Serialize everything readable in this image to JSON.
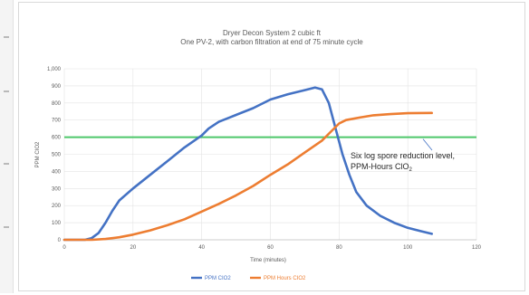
{
  "window": {
    "left_strip_icon": "ruler-icon"
  },
  "chart_data": {
    "type": "line",
    "title_line1": "Dryer Decon System 2 cubic ft",
    "title_line2": "One PV-2, with carbon filtration at end of 75 minute cycle",
    "xlabel": "Time (minutes)",
    "ylabel": "PPM CIO2",
    "xlim": [
      0,
      120
    ],
    "ylim": [
      0,
      1000
    ],
    "x_ticks": [
      0,
      20,
      40,
      60,
      80,
      100,
      120
    ],
    "y_ticks": [
      0,
      100,
      200,
      300,
      400,
      500,
      600,
      700,
      800,
      900,
      1000
    ],
    "grid": true,
    "legend_position": "bottom",
    "threshold": {
      "y": 600,
      "color": "#4ec86a",
      "label_line1": "Six log spore reduction level,",
      "label_line2": "PPM-Hours ClO",
      "label_subscript": "2"
    },
    "series": [
      {
        "name": "PPM CIO2",
        "color": "#4472c4",
        "points": [
          [
            0,
            0
          ],
          [
            6,
            0
          ],
          [
            8,
            10
          ],
          [
            10,
            40
          ],
          [
            12,
            100
          ],
          [
            14,
            170
          ],
          [
            16,
            230
          ],
          [
            20,
            300
          ],
          [
            25,
            380
          ],
          [
            30,
            460
          ],
          [
            35,
            540
          ],
          [
            40,
            610
          ],
          [
            42,
            650
          ],
          [
            45,
            690
          ],
          [
            50,
            730
          ],
          [
            55,
            770
          ],
          [
            60,
            820
          ],
          [
            65,
            850
          ],
          [
            70,
            875
          ],
          [
            73,
            890
          ],
          [
            75,
            880
          ],
          [
            77,
            800
          ],
          [
            79,
            650
          ],
          [
            81,
            500
          ],
          [
            83,
            380
          ],
          [
            85,
            280
          ],
          [
            88,
            200
          ],
          [
            92,
            140
          ],
          [
            96,
            100
          ],
          [
            100,
            70
          ],
          [
            104,
            50
          ],
          [
            107,
            35
          ]
        ]
      },
      {
        "name": "PPM Hours CIO2",
        "color": "#ed7d31",
        "points": [
          [
            0,
            0
          ],
          [
            8,
            0
          ],
          [
            12,
            5
          ],
          [
            16,
            15
          ],
          [
            20,
            30
          ],
          [
            25,
            55
          ],
          [
            30,
            85
          ],
          [
            35,
            120
          ],
          [
            40,
            165
          ],
          [
            45,
            210
          ],
          [
            50,
            260
          ],
          [
            55,
            315
          ],
          [
            60,
            380
          ],
          [
            65,
            440
          ],
          [
            70,
            510
          ],
          [
            75,
            580
          ],
          [
            78,
            640
          ],
          [
            80,
            680
          ],
          [
            82,
            700
          ],
          [
            86,
            715
          ],
          [
            90,
            728
          ],
          [
            95,
            735
          ],
          [
            100,
            740
          ],
          [
            107,
            742
          ]
        ]
      }
    ]
  }
}
